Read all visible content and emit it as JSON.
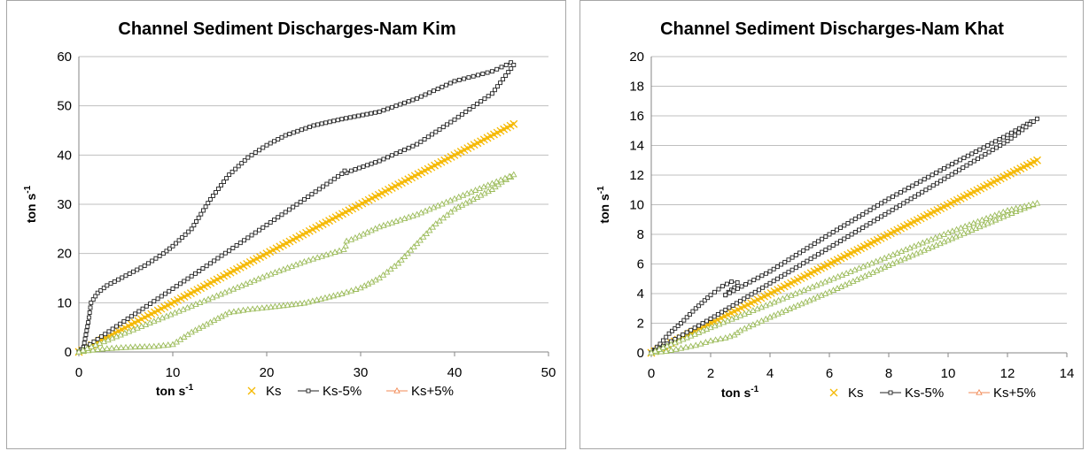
{
  "colors": {
    "ks": "#f5b800",
    "ks_minus": "#222222",
    "ks_plus_line": "#a5c26b",
    "ks_plus_marker": "#9bbb59",
    "ks_legend_line": "#f28a55",
    "grid": "#bfbfbf",
    "axis": "#868686"
  },
  "chart_data": [
    {
      "type": "scatter",
      "title": "Channel Sediment Discharges-Nam Kim",
      "xlabel": "ton s",
      "xlabel_sup": "-1",
      "ylabel": "ton s",
      "ylabel_sup": "-1",
      "xlim": [
        0,
        50
      ],
      "ylim": [
        0,
        60
      ],
      "xticks": [
        0,
        10,
        20,
        30,
        40,
        50
      ],
      "yticks": [
        0,
        10,
        20,
        30,
        40,
        50,
        60
      ],
      "grid": true,
      "legend_position": "bottom",
      "legend": [
        "Ks",
        "Ks-5%",
        "Ks+5%"
      ],
      "series": [
        {
          "name": "Ks",
          "marker": "x",
          "x": [
            0,
            46.3
          ],
          "y": [
            0,
            46.3
          ]
        },
        {
          "name": "Ks-5%",
          "marker": "square",
          "x": [
            0,
            0.5,
            1,
            1.3,
            2,
            3,
            5,
            7,
            9,
            10,
            12,
            14,
            16,
            18,
            20,
            22,
            25,
            28,
            32,
            36,
            40,
            42,
            44,
            45.5,
            46,
            46.3,
            44,
            40,
            36,
            32,
            29,
            28.5,
            28.3,
            28,
            24,
            20,
            16,
            12,
            8,
            4,
            2,
            0
          ],
          "y": [
            0,
            1,
            6,
            10,
            12,
            13.5,
            15.5,
            17.5,
            20,
            21.5,
            25,
            31,
            36,
            39.5,
            42,
            44,
            46,
            47.3,
            48.8,
            51.5,
            55,
            56,
            57,
            58.3,
            58.8,
            58.3,
            52.5,
            47.2,
            42.2,
            38.8,
            36.8,
            36.4,
            36.8,
            36.2,
            31,
            25.8,
            20.6,
            15.4,
            10.3,
            5.2,
            2.6,
            0
          ]
        },
        {
          "name": "Ks+5%",
          "marker": "triangle",
          "x": [
            0,
            2,
            4,
            6,
            8,
            10,
            12,
            14,
            16,
            18,
            20,
            24,
            28,
            30,
            32,
            34,
            36,
            38,
            40,
            42,
            44,
            45,
            46,
            46.3,
            44,
            40,
            36,
            32,
            29,
            28.5,
            28.4,
            28.2,
            24,
            20,
            16,
            12,
            8,
            4,
            0
          ],
          "y": [
            0,
            0.5,
            0.8,
            1,
            1.1,
            1.5,
            4,
            6,
            8,
            8.6,
            9,
            9.9,
            11.8,
            13,
            15,
            18,
            22,
            26,
            29,
            31,
            33,
            34.5,
            35.5,
            36,
            34.2,
            31.1,
            27.9,
            25.4,
            22.8,
            22.5,
            21.5,
            20.8,
            18.3,
            15.5,
            12.4,
            9.3,
            6.2,
            3.1,
            0
          ]
        }
      ]
    },
    {
      "type": "scatter",
      "title": "Channel Sediment Discharges-Nam Khat",
      "xlabel": "ton s",
      "xlabel_sup": "-1",
      "ylabel": "ton s",
      "ylabel_sup": "-1",
      "xlim": [
        0,
        14
      ],
      "ylim": [
        0,
        20
      ],
      "xticks": [
        0,
        2,
        4,
        6,
        8,
        10,
        12,
        14
      ],
      "yticks": [
        0,
        2,
        4,
        6,
        8,
        10,
        12,
        14,
        16,
        18,
        20
      ],
      "grid": true,
      "legend_position": "bottom",
      "legend": [
        "Ks",
        "Ks-5%",
        "Ks+5%"
      ],
      "series": [
        {
          "name": "Ks",
          "marker": "x",
          "x": [
            0,
            13
          ],
          "y": [
            0,
            13
          ]
        },
        {
          "name": "Ks-5%",
          "marker": "square",
          "x": [
            0,
            0.3,
            0.6,
            1,
            1.5,
            2,
            2.4,
            2.7,
            2.9,
            2.8,
            2.6,
            2.5,
            2.5,
            4,
            6,
            8,
            10,
            12,
            12.8,
            13,
            12,
            10,
            8,
            6,
            4,
            2,
            0
          ],
          "y": [
            0,
            0.6,
            1.3,
            2,
            3,
            3.9,
            4.5,
            4.8,
            4.75,
            4.4,
            4.1,
            3.9,
            3.9,
            5.5,
            8,
            10.4,
            12.6,
            14.7,
            15.6,
            15.8,
            14.3,
            11.9,
            9.5,
            7.1,
            4.7,
            2.3,
            0
          ]
        },
        {
          "name": "Ks+5%",
          "marker": "triangle",
          "x": [
            0,
            0.5,
            1,
            1.5,
            2,
            2.5,
            2.8,
            3,
            4,
            6,
            8,
            10,
            12,
            13,
            12,
            10,
            8,
            6,
            4,
            2,
            0
          ],
          "y": [
            0,
            0.1,
            0.3,
            0.5,
            0.8,
            1,
            1.2,
            1.5,
            2.4,
            4.1,
            5.9,
            7.6,
            9.3,
            10.1,
            9.6,
            8.1,
            6.5,
            4.9,
            3.3,
            1.7,
            0
          ]
        }
      ]
    }
  ]
}
